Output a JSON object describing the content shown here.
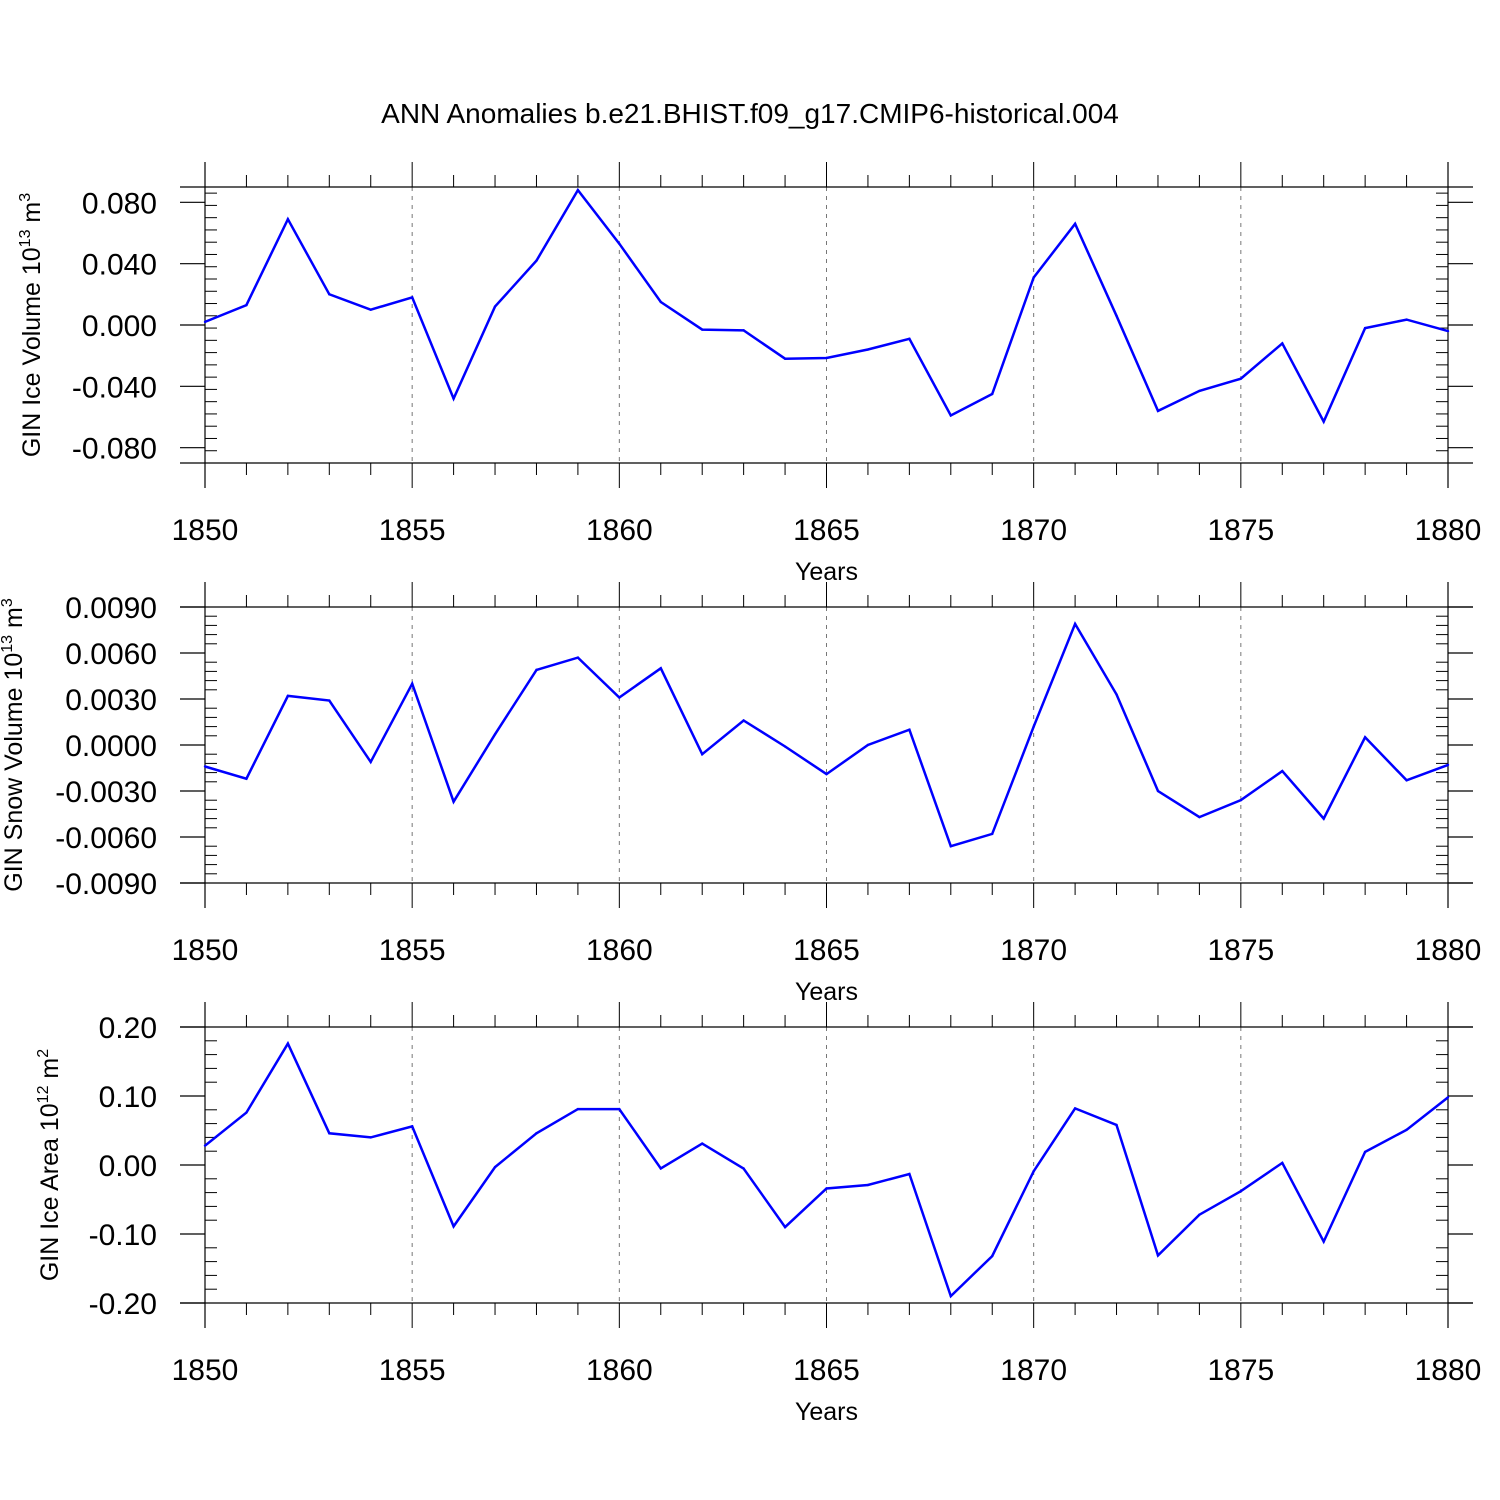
{
  "title": "ANN Anomalies b.e21.BHIST.f09_g17.CMIP6-historical.004",
  "line_color": "#0000ff",
  "chart_data": [
    {
      "type": "line",
      "ylabel": "GIN Ice Volume 10",
      "ylabel_exp": "13",
      "ylabel_unit": "m",
      "ylabel_unit_exp": "3",
      "xlabel": "Years",
      "xlim": [
        1850,
        1880
      ],
      "ylim": [
        -0.09,
        0.09
      ],
      "yticks": [
        0.08,
        0.04,
        0.0,
        -0.04,
        -0.08
      ],
      "ytick_labels": [
        "0.080",
        "0.040",
        "0.000",
        "-0.040",
        "-0.080"
      ],
      "xticks": [
        1850,
        1855,
        1860,
        1865,
        1870,
        1875,
        1880
      ],
      "xtick_labels": [
        "1850",
        "1855",
        "1860",
        "1865",
        "1870",
        "1875",
        "1880"
      ],
      "x": [
        1850,
        1851,
        1852,
        1853,
        1854,
        1855,
        1856,
        1857,
        1858,
        1859,
        1860,
        1861,
        1862,
        1863,
        1864,
        1865,
        1866,
        1867,
        1868,
        1869,
        1870,
        1871,
        1872,
        1873,
        1874,
        1875,
        1876,
        1877,
        1878,
        1879,
        1880
      ],
      "values": [
        0.002,
        0.013,
        0.069,
        0.02,
        0.01,
        0.018,
        -0.048,
        0.012,
        0.042,
        0.088,
        0.053,
        0.015,
        -0.003,
        -0.0035,
        -0.022,
        -0.0215,
        -0.016,
        -0.009,
        -0.059,
        -0.045,
        0.031,
        0.066,
        0.006,
        -0.056,
        -0.043,
        -0.035,
        -0.012,
        -0.063,
        -0.002,
        0.0035,
        -0.004
      ]
    },
    {
      "type": "line",
      "ylabel": "GIN Snow Volume 10",
      "ylabel_exp": "13",
      "ylabel_unit": "m",
      "ylabel_unit_exp": "3",
      "xlabel": "Years",
      "xlim": [
        1850,
        1880
      ],
      "ylim": [
        -0.009,
        0.009
      ],
      "yticks": [
        0.009,
        0.006,
        0.003,
        0.0,
        -0.003,
        -0.006,
        -0.009
      ],
      "ytick_labels": [
        "0.0090",
        "0.0060",
        "0.0030",
        "0.0000",
        "-0.0030",
        "-0.0060",
        "-0.0090"
      ],
      "xticks": [
        1850,
        1855,
        1860,
        1865,
        1870,
        1875,
        1880
      ],
      "xtick_labels": [
        "1850",
        "1855",
        "1860",
        "1865",
        "1870",
        "1875",
        "1880"
      ],
      "x": [
        1850,
        1851,
        1852,
        1853,
        1854,
        1855,
        1856,
        1857,
        1858,
        1859,
        1860,
        1861,
        1862,
        1863,
        1864,
        1865,
        1866,
        1867,
        1868,
        1869,
        1870,
        1871,
        1872,
        1873,
        1874,
        1875,
        1876,
        1877,
        1878,
        1879,
        1880
      ],
      "values": [
        -0.0014,
        -0.0022,
        0.0032,
        0.0029,
        -0.0011,
        0.004,
        -0.0037,
        0.0007,
        0.0049,
        0.0057,
        0.0031,
        0.005,
        -0.0006,
        0.0016,
        -0.0001,
        -0.0019,
        0.0,
        0.001,
        -0.0066,
        -0.0058,
        0.0012,
        0.0079,
        0.0033,
        -0.003,
        -0.0047,
        -0.0036,
        -0.0017,
        -0.0048,
        0.0005,
        -0.0023,
        -0.0013
      ]
    },
    {
      "type": "line",
      "ylabel": "GIN Ice Area 10",
      "ylabel_exp": "12",
      "ylabel_unit": "m",
      "ylabel_unit_exp": "2",
      "xlabel": "Years",
      "xlim": [
        1850,
        1880
      ],
      "ylim": [
        -0.2,
        0.2
      ],
      "yticks": [
        0.2,
        0.1,
        0.0,
        -0.1,
        -0.2
      ],
      "ytick_labels": [
        "0.20",
        "0.10",
        "0.00",
        "-0.10",
        "-0.20"
      ],
      "xticks": [
        1850,
        1855,
        1860,
        1865,
        1870,
        1875,
        1880
      ],
      "xtick_labels": [
        "1850",
        "1855",
        "1860",
        "1865",
        "1870",
        "1875",
        "1880"
      ],
      "x": [
        1850,
        1851,
        1852,
        1853,
        1854,
        1855,
        1856,
        1857,
        1858,
        1859,
        1860,
        1861,
        1862,
        1863,
        1864,
        1865,
        1866,
        1867,
        1868,
        1869,
        1870,
        1871,
        1872,
        1873,
        1874,
        1875,
        1876,
        1877,
        1878,
        1879,
        1880
      ],
      "values": [
        0.028,
        0.076,
        0.176,
        0.046,
        0.04,
        0.056,
        -0.089,
        -0.003,
        0.046,
        0.081,
        0.081,
        -0.005,
        0.031,
        -0.005,
        -0.09,
        -0.034,
        -0.029,
        -0.013,
        -0.19,
        -0.132,
        -0.009,
        0.082,
        0.058,
        -0.131,
        -0.072,
        -0.038,
        0.003,
        -0.111,
        0.019,
        0.051,
        0.098
      ]
    }
  ]
}
